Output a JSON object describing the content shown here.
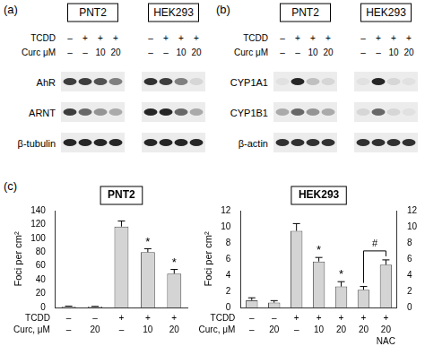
{
  "blots": [
    {
      "panel": "(a)",
      "conditions": [
        {
          "name": "TCDD",
          "values": [
            "–",
            "+",
            "+",
            "+"
          ]
        },
        {
          "name": "Curc μM",
          "values": [
            "–",
            "–",
            "10",
            "20"
          ]
        }
      ],
      "rows": [
        "AhR",
        "ARNT",
        "β-tubulin"
      ],
      "cell_lines": [
        {
          "name": "PNT2",
          "intensity": [
            [
              0.8,
              0.8,
              0.7,
              0.5
            ],
            [
              0.8,
              0.6,
              0.4,
              0.3
            ],
            [
              0.9,
              0.9,
              0.9,
              0.9
            ]
          ]
        },
        {
          "name": "HEK293",
          "intensity": [
            [
              0.85,
              0.8,
              0.5,
              0.1
            ],
            [
              0.9,
              0.9,
              0.6,
              0.3
            ],
            [
              0.9,
              0.9,
              0.9,
              0.9
            ]
          ]
        }
      ]
    },
    {
      "panel": "(b)",
      "conditions": [
        {
          "name": "TCDD",
          "values": [
            "–",
            "+",
            "+",
            "+"
          ]
        },
        {
          "name": "Curc μM",
          "values": [
            "–",
            "–",
            "10",
            "20"
          ]
        }
      ],
      "rows": [
        "CYP1A1",
        "CYP1B1",
        "β-actin"
      ],
      "cell_lines": [
        {
          "name": "PNT2",
          "intensity": [
            [
              0.05,
              0.9,
              0.2,
              0.1
            ],
            [
              0.3,
              0.6,
              0.4,
              0.3
            ],
            [
              0.85,
              0.85,
              0.85,
              0.85
            ]
          ]
        },
        {
          "name": "HEK293",
          "intensity": [
            [
              0.05,
              0.9,
              0.1,
              0.05
            ],
            [
              0.1,
              0.6,
              0.1,
              0.05
            ],
            [
              0.85,
              0.85,
              0.85,
              0.85
            ]
          ]
        }
      ]
    }
  ],
  "panel_label": "(c)",
  "chart_data": [
    {
      "type": "bar",
      "title": "PNT2",
      "y_label": "Foci per cm²",
      "conditions": [
        {
          "name": "TCDD",
          "values": [
            "–",
            "–",
            "+",
            "+",
            "+"
          ]
        },
        {
          "name": "Curc, μM",
          "values": [
            "–",
            "20",
            "–",
            "10",
            "20"
          ]
        }
      ],
      "values": [
        1.5,
        1.2,
        117,
        80,
        49
      ],
      "errors": [
        0.5,
        0.4,
        8,
        5,
        6
      ],
      "significance": [
        null,
        null,
        null,
        "*",
        "*"
      ],
      "color": "#d4d4d4",
      "ylim": [
        0,
        140
      ],
      "yticks": [
        0,
        20,
        40,
        60,
        80,
        100,
        120,
        140
      ],
      "grid": false,
      "tick_labels": "y"
    },
    {
      "type": "bar",
      "title": "HEK293",
      "y_label": "Foci per cm²",
      "conditions": [
        {
          "name": "TCDD",
          "values": [
            "–",
            "–",
            "+",
            "+",
            "+",
            "+",
            "+"
          ]
        },
        {
          "name": "Curc, μM",
          "values": [
            "–",
            "20",
            "–",
            "10",
            "20",
            "20",
            "20"
          ]
        },
        {
          "name": null,
          "values": [
            null,
            null,
            null,
            null,
            null,
            null,
            "NAC"
          ]
        }
      ],
      "values": [
        0.9,
        0.6,
        9.5,
        5.7,
        2.6,
        2.2,
        5.3
      ],
      "errors": [
        0.3,
        0.25,
        0.9,
        0.5,
        0.6,
        0.4,
        0.6
      ],
      "significance": [
        null,
        null,
        null,
        "*",
        "*",
        null,
        null
      ],
      "comparison": {
        "between": [
          5,
          6
        ],
        "label": "#"
      },
      "color": "#d4d4d4",
      "ylim": [
        0,
        12
      ],
      "yticks": [
        0,
        2,
        4,
        6,
        8,
        10,
        12
      ],
      "y2lim": [
        0,
        12
      ],
      "y2ticks": [
        0,
        2,
        4,
        6,
        8,
        10,
        12
      ],
      "grid": false,
      "tick_labels": "y"
    }
  ]
}
